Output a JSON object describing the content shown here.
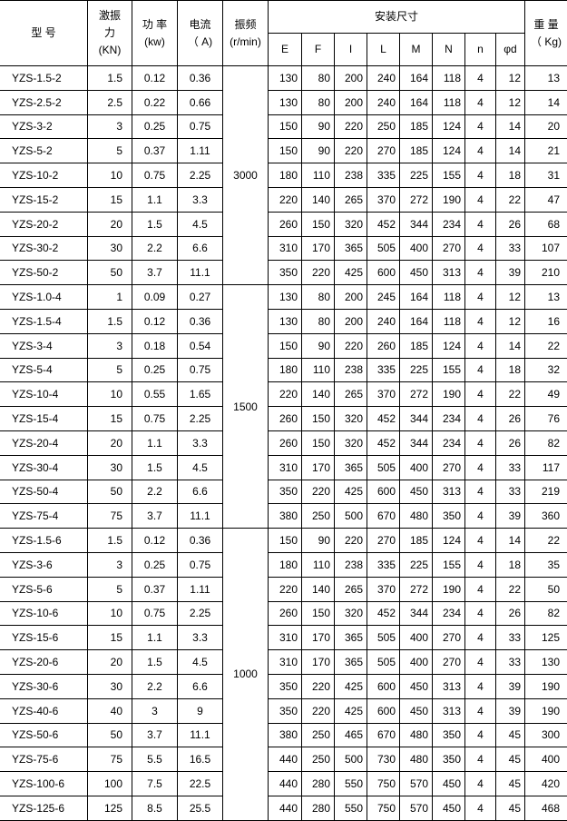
{
  "header": {
    "model": "型 号",
    "force": [
      "激振",
      "力",
      "(KN)"
    ],
    "power": [
      "功 率",
      "(kw)"
    ],
    "current": [
      "电流",
      "（ A)"
    ],
    "freq": [
      "振频",
      "(r/min)"
    ],
    "install": "安装尺寸",
    "dims": [
      "E",
      "F",
      "I",
      "L",
      "M",
      "N",
      "n",
      "φd"
    ],
    "weight": [
      "重 量",
      "（ Kg)"
    ]
  },
  "groups": [
    {
      "freq": "3000",
      "rows": [
        [
          "YZS-1.5-2",
          "1.5",
          "0.12",
          "0.36",
          "130",
          "80",
          "200",
          "240",
          "164",
          "118",
          "4",
          "12",
          "13"
        ],
        [
          "YZS-2.5-2",
          "2.5",
          "0.22",
          "0.66",
          "130",
          "80",
          "200",
          "240",
          "164",
          "118",
          "4",
          "12",
          "14"
        ],
        [
          "YZS-3-2",
          "3",
          "0.25",
          "0.75",
          "150",
          "90",
          "220",
          "250",
          "185",
          "124",
          "4",
          "14",
          "20"
        ],
        [
          "YZS-5-2",
          "5",
          "0.37",
          "1.11",
          "150",
          "90",
          "220",
          "270",
          "185",
          "124",
          "4",
          "14",
          "21"
        ],
        [
          "YZS-10-2",
          "10",
          "0.75",
          "2.25",
          "180",
          "110",
          "238",
          "335",
          "225",
          "155",
          "4",
          "18",
          "31"
        ],
        [
          "YZS-15-2",
          "15",
          "1.1",
          "3.3",
          "220",
          "140",
          "265",
          "370",
          "272",
          "190",
          "4",
          "22",
          "47"
        ],
        [
          "YZS-20-2",
          "20",
          "1.5",
          "4.5",
          "260",
          "150",
          "320",
          "452",
          "344",
          "234",
          "4",
          "26",
          "68"
        ],
        [
          "YZS-30-2",
          "30",
          "2.2",
          "6.6",
          "310",
          "170",
          "365",
          "505",
          "400",
          "270",
          "4",
          "33",
          "107"
        ],
        [
          "YZS-50-2",
          "50",
          "3.7",
          "11.1",
          "350",
          "220",
          "425",
          "600",
          "450",
          "313",
          "4",
          "39",
          "210"
        ]
      ]
    },
    {
      "freq": "1500",
      "rows": [
        [
          "YZS-1.0-4",
          "1",
          "0.09",
          "0.27",
          "130",
          "80",
          "200",
          "245",
          "164",
          "118",
          "4",
          "12",
          "13"
        ],
        [
          "YZS-1.5-4",
          "1.5",
          "0.12",
          "0.36",
          "130",
          "80",
          "200",
          "240",
          "164",
          "118",
          "4",
          "12",
          "16"
        ],
        [
          "YZS-3-4",
          "3",
          "0.18",
          "0.54",
          "150",
          "90",
          "220",
          "260",
          "185",
          "124",
          "4",
          "14",
          "22"
        ],
        [
          "YZS-5-4",
          "5",
          "0.25",
          "0.75",
          "180",
          "110",
          "238",
          "335",
          "225",
          "155",
          "4",
          "18",
          "32"
        ],
        [
          "YZS-10-4",
          "10",
          "0.55",
          "1.65",
          "220",
          "140",
          "265",
          "370",
          "272",
          "190",
          "4",
          "22",
          "49"
        ],
        [
          "YZS-15-4",
          "15",
          "0.75",
          "2.25",
          "260",
          "150",
          "320",
          "452",
          "344",
          "234",
          "4",
          "26",
          "76"
        ],
        [
          "YZS-20-4",
          "20",
          "1.1",
          "3.3",
          "260",
          "150",
          "320",
          "452",
          "344",
          "234",
          "4",
          "26",
          "82"
        ],
        [
          "YZS-30-4",
          "30",
          "1.5",
          "4.5",
          "310",
          "170",
          "365",
          "505",
          "400",
          "270",
          "4",
          "33",
          "117"
        ],
        [
          "YZS-50-4",
          "50",
          "2.2",
          "6.6",
          "350",
          "220",
          "425",
          "600",
          "450",
          "313",
          "4",
          "33",
          "219"
        ],
        [
          "YZS-75-4",
          "75",
          "3.7",
          "11.1",
          "380",
          "250",
          "500",
          "670",
          "480",
          "350",
          "4",
          "39",
          "360"
        ]
      ]
    },
    {
      "freq": "1000",
      "rows": [
        [
          "YZS-1.5-6",
          "1.5",
          "0.12",
          "0.36",
          "150",
          "90",
          "220",
          "270",
          "185",
          "124",
          "4",
          "14",
          "22"
        ],
        [
          "YZS-3-6",
          "3",
          "0.25",
          "0.75",
          "180",
          "110",
          "238",
          "335",
          "225",
          "155",
          "4",
          "18",
          "35"
        ],
        [
          "YZS-5-6",
          "5",
          "0.37",
          "1.11",
          "220",
          "140",
          "265",
          "370",
          "272",
          "190",
          "4",
          "22",
          "50"
        ],
        [
          "YZS-10-6",
          "10",
          "0.75",
          "2.25",
          "260",
          "150",
          "320",
          "452",
          "344",
          "234",
          "4",
          "26",
          "82"
        ],
        [
          "YZS-15-6",
          "15",
          "1.1",
          "3.3",
          "310",
          "170",
          "365",
          "505",
          "400",
          "270",
          "4",
          "33",
          "125"
        ],
        [
          "YZS-20-6",
          "20",
          "1.5",
          "4.5",
          "310",
          "170",
          "365",
          "505",
          "400",
          "270",
          "4",
          "33",
          "130"
        ],
        [
          "YZS-30-6",
          "30",
          "2.2",
          "6.6",
          "350",
          "220",
          "425",
          "600",
          "450",
          "313",
          "4",
          "39",
          "190"
        ],
        [
          "YZS-40-6",
          "40",
          "3",
          "9",
          "350",
          "220",
          "425",
          "600",
          "450",
          "313",
          "4",
          "39",
          "190"
        ],
        [
          "YZS-50-6",
          "50",
          "3.7",
          "11.1",
          "380",
          "250",
          "465",
          "670",
          "480",
          "350",
          "4",
          "45",
          "300"
        ],
        [
          "YZS-75-6",
          "75",
          "5.5",
          "16.5",
          "440",
          "250",
          "500",
          "730",
          "480",
          "350",
          "4",
          "45",
          "400"
        ],
        [
          "YZS-100-6",
          "100",
          "7.5",
          "22.5",
          "440",
          "280",
          "550",
          "750",
          "570",
          "450",
          "4",
          "45",
          "420"
        ],
        [
          "YZS-125-6",
          "125",
          "8.5",
          "25.5",
          "440",
          "280",
          "550",
          "750",
          "570",
          "450",
          "4",
          "45",
          "468"
        ]
      ]
    }
  ]
}
